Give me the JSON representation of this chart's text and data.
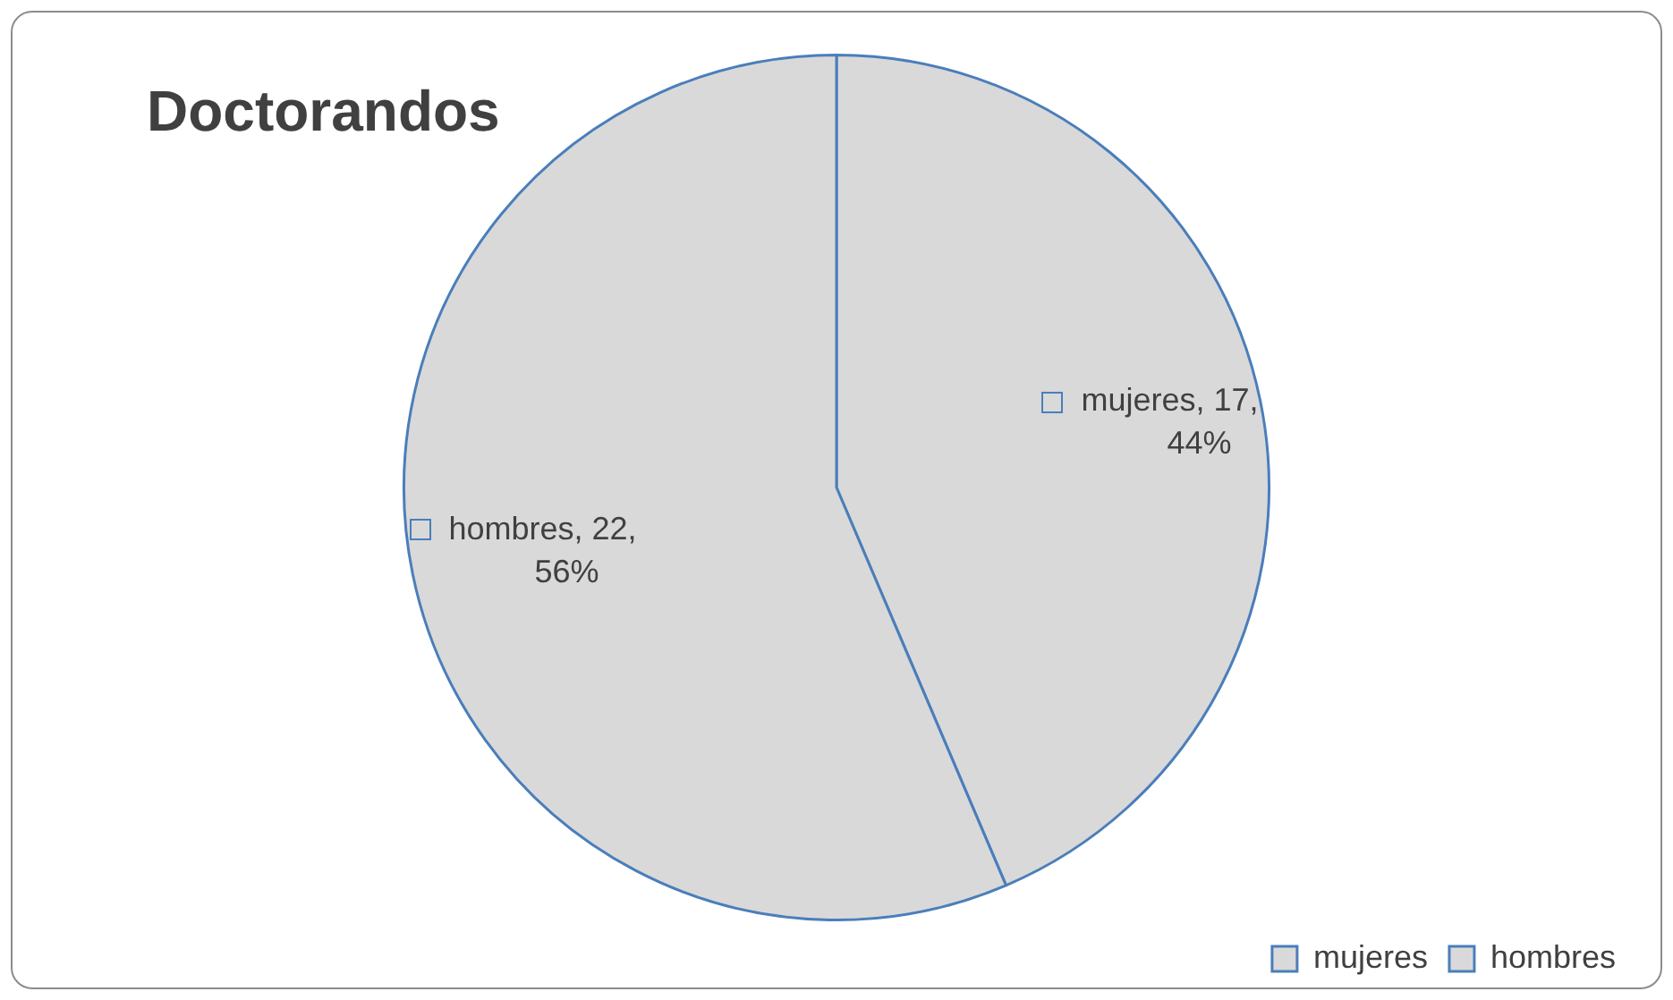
{
  "chart_data": {
    "type": "pie",
    "title": "Doctorandos",
    "categories": [
      "mujeres",
      "hombres"
    ],
    "values": [
      17,
      22
    ],
    "colors": [
      "#d9d9d9",
      "#d9d9d9"
    ],
    "value_labels": [
      "mujeres, 17, 44%",
      "hombres, 22, 56%"
    ],
    "legend": "bottom right"
  }
}
